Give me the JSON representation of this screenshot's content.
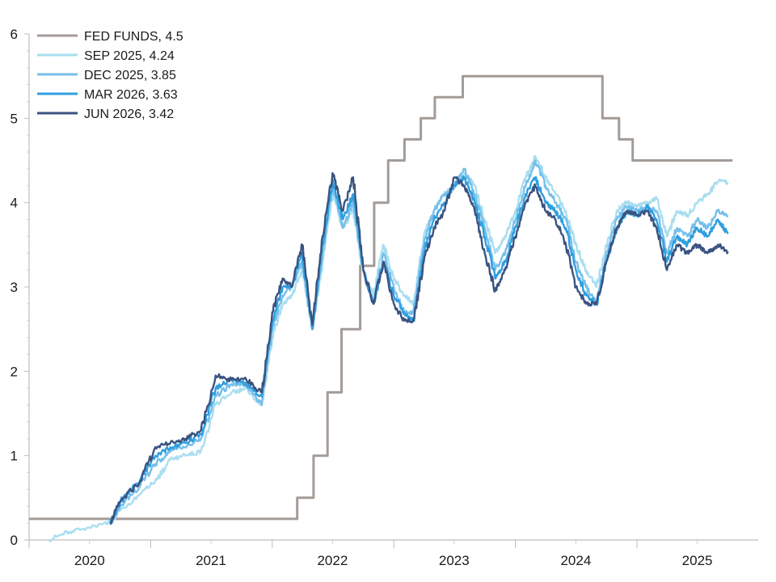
{
  "chart_data": {
    "type": "line",
    "title": "",
    "xlabel": "",
    "ylabel": "",
    "ylim": [
      0,
      6
    ],
    "xlim": [
      "2020-01-01",
      "2025-12-31"
    ],
    "yticks": [
      "0",
      "1",
      "2",
      "3",
      "4",
      "5",
      "6"
    ],
    "xticks": [
      "2020",
      "2021",
      "2022",
      "2023",
      "2024",
      "2025"
    ],
    "grid": false,
    "legend_position": "top-left",
    "series": [
      {
        "name": "FED FUNDS, 4.5",
        "color": "#a39b97",
        "step": true,
        "x": [
          "2020-01-01",
          "2022-03-17",
          "2022-05-05",
          "2022-06-16",
          "2022-07-28",
          "2022-09-22",
          "2022-11-03",
          "2022-12-15",
          "2023-02-02",
          "2023-03-23",
          "2023-05-04",
          "2023-07-27",
          "2024-09-19",
          "2024-11-08",
          "2024-12-19",
          "2025-10-15"
        ],
        "y": [
          0.25,
          0.5,
          1.0,
          1.75,
          2.5,
          3.25,
          4.0,
          4.5,
          4.75,
          5.0,
          5.25,
          5.5,
          5.0,
          4.75,
          4.5,
          4.5
        ]
      },
      {
        "name": "SEP 2025, 4.24",
        "color": "#a9def0",
        "x": [
          "2020-03-01",
          "2020-05-01",
          "2020-07-01",
          "2020-09-01",
          "2020-10-01",
          "2020-12-01",
          "2021-01-15",
          "2021-03-01",
          "2021-04-15",
          "2021-06-01",
          "2021-07-15",
          "2021-09-01",
          "2021-10-15",
          "2021-12-01",
          "2022-01-01",
          "2022-02-01",
          "2022-03-01",
          "2022-04-01",
          "2022-05-01",
          "2022-06-01",
          "2022-07-01",
          "2022-08-01",
          "2022-09-01",
          "2022-10-01",
          "2022-11-01",
          "2022-12-01",
          "2023-01-01",
          "2023-02-01",
          "2023-03-01",
          "2023-04-01",
          "2023-05-01",
          "2023-06-01",
          "2023-07-01",
          "2023-08-01",
          "2023-09-01",
          "2023-10-01",
          "2023-11-01",
          "2023-12-01",
          "2024-01-01",
          "2024-02-01",
          "2024-03-01",
          "2024-04-01",
          "2024-05-01",
          "2024-06-01",
          "2024-07-01",
          "2024-08-01",
          "2024-09-01",
          "2024-10-01",
          "2024-11-01",
          "2024-12-01",
          "2025-01-01",
          "2025-02-01",
          "2025-03-01",
          "2025-04-01",
          "2025-05-01",
          "2025-06-01",
          "2025-07-01",
          "2025-08-01",
          "2025-09-01",
          "2025-10-01"
        ],
        "y": [
          0.0,
          0.1,
          0.15,
          0.2,
          0.35,
          0.55,
          0.7,
          0.95,
          1.0,
          1.05,
          1.6,
          1.75,
          1.8,
          1.6,
          2.4,
          2.8,
          2.9,
          3.2,
          2.5,
          3.3,
          4.1,
          3.7,
          3.9,
          3.2,
          2.9,
          3.5,
          3.1,
          2.9,
          2.8,
          3.6,
          3.9,
          4.1,
          4.2,
          4.35,
          4.2,
          3.8,
          3.4,
          3.6,
          3.9,
          4.3,
          4.55,
          4.3,
          4.1,
          3.9,
          3.5,
          3.2,
          3.0,
          3.5,
          3.9,
          4.0,
          3.95,
          4.0,
          4.05,
          3.6,
          3.9,
          3.85,
          4.0,
          4.1,
          4.25,
          4.24
        ]
      },
      {
        "name": "DEC 2025, 3.85",
        "color": "#76bfea",
        "x": [
          "2020-09-01",
          "2020-10-01",
          "2020-12-01",
          "2021-01-15",
          "2021-03-01",
          "2021-04-15",
          "2021-06-01",
          "2021-07-15",
          "2021-09-01",
          "2021-10-15",
          "2021-12-01",
          "2022-01-01",
          "2022-02-01",
          "2022-03-01",
          "2022-04-01",
          "2022-05-01",
          "2022-06-01",
          "2022-07-01",
          "2022-08-01",
          "2022-09-01",
          "2022-10-01",
          "2022-11-01",
          "2022-12-01",
          "2023-01-01",
          "2023-02-01",
          "2023-03-01",
          "2023-04-01",
          "2023-05-01",
          "2023-06-01",
          "2023-07-01",
          "2023-08-01",
          "2023-09-01",
          "2023-10-01",
          "2023-11-01",
          "2023-12-01",
          "2024-01-01",
          "2024-02-01",
          "2024-03-01",
          "2024-04-01",
          "2024-05-01",
          "2024-06-01",
          "2024-07-01",
          "2024-08-01",
          "2024-09-01",
          "2024-10-01",
          "2024-11-01",
          "2024-12-01",
          "2025-01-01",
          "2025-02-01",
          "2025-03-01",
          "2025-04-01",
          "2025-05-01",
          "2025-06-01",
          "2025-07-01",
          "2025-08-01",
          "2025-09-01",
          "2025-10-01"
        ],
        "y": [
          0.2,
          0.4,
          0.65,
          0.9,
          1.05,
          1.1,
          1.2,
          1.7,
          1.85,
          1.85,
          1.6,
          2.5,
          2.9,
          3.0,
          3.3,
          2.5,
          3.4,
          4.2,
          3.7,
          4.0,
          3.2,
          2.8,
          3.4,
          3.0,
          2.7,
          2.7,
          3.5,
          3.9,
          4.1,
          4.2,
          4.4,
          4.1,
          3.7,
          3.2,
          3.4,
          3.8,
          4.2,
          4.5,
          4.2,
          4.0,
          3.8,
          3.3,
          3.0,
          2.8,
          3.4,
          3.8,
          3.95,
          3.9,
          3.95,
          3.9,
          3.4,
          3.7,
          3.6,
          3.8,
          3.7,
          3.9,
          3.85
        ]
      },
      {
        "name": "MAR 2026, 3.63",
        "color": "#2f9fe0",
        "x": [
          "2020-09-01",
          "2020-10-01",
          "2020-12-01",
          "2021-01-15",
          "2021-03-01",
          "2021-04-15",
          "2021-06-01",
          "2021-07-15",
          "2021-09-01",
          "2021-10-15",
          "2021-12-01",
          "2022-01-01",
          "2022-02-01",
          "2022-03-01",
          "2022-04-01",
          "2022-05-01",
          "2022-06-01",
          "2022-07-01",
          "2022-08-01",
          "2022-09-01",
          "2022-10-01",
          "2022-11-01",
          "2022-12-01",
          "2023-01-01",
          "2023-02-01",
          "2023-03-01",
          "2023-04-01",
          "2023-05-01",
          "2023-06-01",
          "2023-07-01",
          "2023-08-01",
          "2023-09-01",
          "2023-10-01",
          "2023-11-01",
          "2023-12-01",
          "2024-01-01",
          "2024-02-01",
          "2024-03-01",
          "2024-04-01",
          "2024-05-01",
          "2024-06-01",
          "2024-07-01",
          "2024-08-01",
          "2024-09-01",
          "2024-10-01",
          "2024-11-01",
          "2024-12-01",
          "2025-01-01",
          "2025-02-01",
          "2025-03-01",
          "2025-04-01",
          "2025-05-01",
          "2025-06-01",
          "2025-07-01",
          "2025-08-01",
          "2025-09-01",
          "2025-10-01"
        ],
        "y": [
          0.2,
          0.45,
          0.72,
          1.0,
          1.1,
          1.15,
          1.25,
          1.8,
          1.9,
          1.85,
          1.7,
          2.6,
          3.0,
          3.0,
          3.4,
          2.5,
          3.5,
          4.25,
          3.8,
          4.1,
          3.2,
          2.8,
          3.3,
          2.9,
          2.7,
          2.6,
          3.4,
          3.8,
          4.0,
          4.2,
          4.3,
          4.0,
          3.6,
          3.1,
          3.3,
          3.7,
          4.1,
          4.3,
          4.0,
          3.9,
          3.7,
          3.2,
          2.9,
          2.8,
          3.3,
          3.7,
          3.9,
          3.85,
          3.95,
          3.8,
          3.3,
          3.6,
          3.5,
          3.7,
          3.6,
          3.8,
          3.63
        ]
      },
      {
        "name": "JUN 2026, 3.42",
        "color": "#3a5380",
        "x": [
          "2020-09-01",
          "2020-10-01",
          "2020-12-01",
          "2021-01-15",
          "2021-03-01",
          "2021-04-15",
          "2021-06-01",
          "2021-07-15",
          "2021-09-01",
          "2021-10-15",
          "2021-12-01",
          "2022-01-01",
          "2022-02-01",
          "2022-03-01",
          "2022-04-01",
          "2022-05-01",
          "2022-06-01",
          "2022-07-01",
          "2022-08-01",
          "2022-09-01",
          "2022-10-01",
          "2022-11-01",
          "2022-12-01",
          "2023-01-01",
          "2023-02-01",
          "2023-03-01",
          "2023-04-01",
          "2023-05-01",
          "2023-06-01",
          "2023-07-01",
          "2023-08-01",
          "2023-09-01",
          "2023-10-01",
          "2023-11-01",
          "2023-12-01",
          "2024-01-01",
          "2024-02-01",
          "2024-03-01",
          "2024-04-01",
          "2024-05-01",
          "2024-06-01",
          "2024-07-01",
          "2024-08-01",
          "2024-09-01",
          "2024-10-01",
          "2024-11-01",
          "2024-12-01",
          "2025-01-01",
          "2025-02-01",
          "2025-03-01",
          "2025-04-01",
          "2025-05-01",
          "2025-06-01",
          "2025-07-01",
          "2025-08-01",
          "2025-09-01",
          "2025-10-01"
        ],
        "y": [
          0.2,
          0.45,
          0.7,
          1.1,
          1.15,
          1.2,
          1.3,
          1.95,
          1.9,
          1.9,
          1.75,
          2.7,
          3.1,
          3.0,
          3.5,
          2.55,
          3.6,
          4.35,
          3.9,
          4.3,
          3.2,
          2.8,
          3.3,
          2.8,
          2.6,
          2.6,
          3.3,
          3.7,
          3.9,
          4.3,
          4.2,
          3.9,
          3.4,
          2.95,
          3.2,
          3.6,
          4.0,
          4.2,
          3.9,
          3.8,
          3.5,
          3.0,
          2.8,
          2.8,
          3.3,
          3.7,
          3.9,
          3.85,
          3.9,
          3.7,
          3.2,
          3.5,
          3.4,
          3.5,
          3.4,
          3.5,
          3.42
        ]
      }
    ]
  }
}
